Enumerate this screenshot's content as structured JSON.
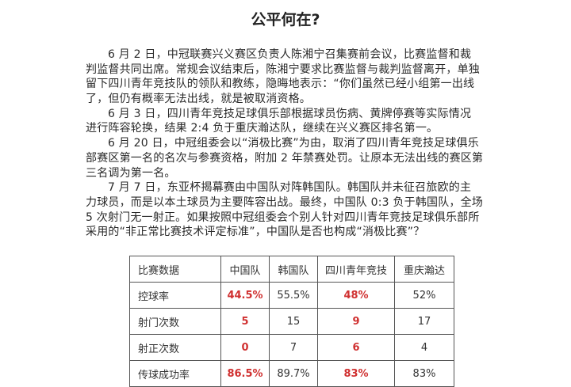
{
  "title": "公平何在?",
  "lines": [
    {
      "text": "6 月 2 日，中冠联赛兴义赛区负责人陈湘宁召集赛前会议，比赛监督和裁",
      "indent": true
    },
    {
      "text": "判监督共同出席。常规会议结束后，陈湘宁要求比赛监督与裁判监督离开，单独",
      "indent": false
    },
    {
      "text": "留下四川青年竞技队的领队和教练，隐晦地表示：“你们虽然已经小组第一出线",
      "indent": false
    },
    {
      "text": "了，但仍有概率无法出线，就是被取消资格。",
      "indent": false
    },
    {
      "text": "6 月 3 日，四川青年竞技足球俱乐部根据球员伤病、黄牌停赛等实际情况",
      "indent": true
    },
    {
      "text": "进行阵容轮换，结果 2:4 负于重庆瀚达队，继续在兴义赛区排名第一。",
      "indent": false
    },
    {
      "text": "6 月 20 日，中冠组委会以“消极比赛”为由，取消了四川青年竞技足球俱乐",
      "indent": true
    },
    {
      "text": "部赛区第一名的名次与参赛资格，附加 2 年禁赛处罚。让原本无法出线的赛区第",
      "indent": false
    },
    {
      "text": "三名调为第一名。",
      "indent": false
    },
    {
      "text": "7 月 7 日，东亚杯揭幕赛由中国队对阵韩国队。韩国队并未征召旅欧的主",
      "indent": true
    },
    {
      "text": "力球员，而是以本土球员为主要阵容出战。最终，中国队 0:3 负于韩国队，全场",
      "indent": false
    },
    {
      "text": "5 次射门无一射正。如果按照中冠组委会个别人针对四川青年竞技足球俱乐部所",
      "indent": false
    },
    {
      "text": "采用的“非正常比赛技术评定标准”，中国队是否也构成“消极比赛”？",
      "indent": false
    }
  ],
  "table": {
    "headers": [
      "比赛数据",
      "中国队",
      "韩国队",
      "四川青年竞技",
      "重庆瀚达"
    ],
    "rows": [
      [
        "控球率",
        "44.5%",
        "55.5%",
        "48%",
        "52%"
      ],
      [
        "射门次数",
        "5",
        "15",
        "9",
        "17"
      ],
      [
        "射正次数",
        "0",
        "7",
        "6",
        "4"
      ],
      [
        "传球成功率",
        "86.5%",
        "89.7%",
        "83%",
        "83%"
      ]
    ],
    "highlight_color": "#d03030"
  }
}
